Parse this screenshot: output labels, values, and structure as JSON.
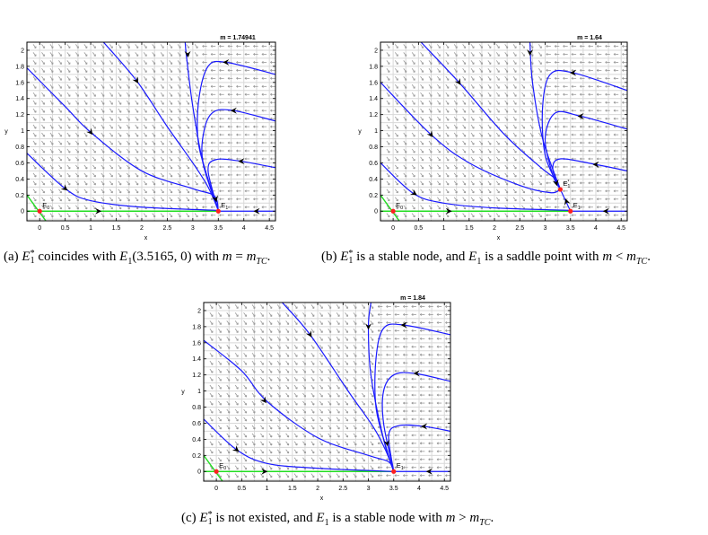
{
  "figure": {
    "colors": {
      "trajectory": "#1a1aff",
      "nullcline": "#22dd22",
      "equilibrium": "#ff2020",
      "field": "#999999",
      "grid": "#d8d8d8"
    },
    "panels": [
      {
        "id": "a",
        "title": "m = 1.74941",
        "xlabel": "x",
        "ylabel": "y",
        "xlim": [
          -0.25,
          4.62
        ],
        "ylim": [
          -0.12,
          2.1
        ],
        "xticks": [
          "0",
          "0.5",
          "1",
          "1.5",
          "2",
          "2.5",
          "3",
          "3.5",
          "4",
          "4.5"
        ],
        "yticks": [
          "0",
          "0.2",
          "0.4",
          "0.6",
          "0.8",
          "1",
          "1.2",
          "1.4",
          "1.6",
          "1.8",
          "2"
        ],
        "trajectories": [
          [
            [
              -0.25,
              0.72
            ],
            [
              0.5,
              0.28
            ],
            [
              1,
              0.13
            ],
            [
              2,
              0.05
            ],
            [
              3.5,
              0.01
            ]
          ],
          [
            [
              -0.25,
              1.78
            ],
            [
              0.5,
              1.3
            ],
            [
              1,
              0.98
            ],
            [
              2,
              0.5
            ],
            [
              3,
              0.28
            ],
            [
              3.42,
              0.19
            ],
            [
              3.5,
              0.01
            ]
          ],
          [
            [
              1.25,
              2.1
            ],
            [
              1.9,
              1.62
            ],
            [
              2.5,
              1.05
            ],
            [
              3,
              0.6
            ],
            [
              3.3,
              0.3
            ],
            [
              3.5,
              0.01
            ]
          ],
          [
            [
              2.85,
              2.1
            ],
            [
              2.88,
              1.9
            ],
            [
              3.0,
              1.3
            ],
            [
              3.2,
              0.6
            ],
            [
              3.5,
              0.01
            ]
          ],
          [
            [
              4.62,
              1.7
            ],
            [
              3.65,
              1.85
            ],
            [
              3.3,
              1.8
            ],
            [
              3.12,
              1.4
            ],
            [
              3.1,
              0.9
            ],
            [
              3.25,
              0.5
            ],
            [
              3.5,
              0.01
            ]
          ],
          [
            [
              4.62,
              1.12
            ],
            [
              3.8,
              1.25
            ],
            [
              3.4,
              1.23
            ],
            [
              3.22,
              1.0
            ],
            [
              3.2,
              0.6
            ],
            [
              3.5,
              0.01
            ]
          ],
          [
            [
              4.62,
              0.54
            ],
            [
              3.95,
              0.62
            ],
            [
              3.45,
              0.64
            ],
            [
              3.3,
              0.5
            ],
            [
              3.5,
              0.01
            ]
          ],
          [
            [
              4.62,
              0
            ],
            [
              3.5,
              0
            ]
          ]
        ],
        "nullclines": [
          [
            [
              -0.25,
              0
            ],
            [
              3.5,
              0
            ]
          ],
          [
            [
              -0.25,
              0.2
            ],
            [
              0.12,
              -0.12
            ]
          ]
        ],
        "arrows": [
          [
            1.9,
            1.62,
            1,
            -1.1
          ],
          [
            1.0,
            0.98,
            1,
            -0.8
          ],
          [
            0.5,
            0.28,
            1,
            -0.5
          ],
          [
            1.15,
            0,
            1,
            0
          ],
          [
            2.9,
            1.95,
            0.05,
            -1
          ],
          [
            3.65,
            1.85,
            -1,
            0
          ],
          [
            3.8,
            1.25,
            -1,
            0
          ],
          [
            3.95,
            0.62,
            -1,
            0
          ],
          [
            3.45,
            0.15,
            0.4,
            -1
          ],
          [
            4.25,
            0,
            -1,
            0
          ]
        ],
        "equilibria": [
          {
            "x": 0,
            "y": 0,
            "name": "E",
            "sub": "0",
            "sup": ""
          },
          {
            "x": 3.5,
            "y": 0,
            "name": "E",
            "sub": "1",
            "sup": ""
          }
        ]
      },
      {
        "id": "b",
        "title": "m = 1.64",
        "xlabel": "x",
        "ylabel": "y",
        "xlim": [
          -0.25,
          4.62
        ],
        "ylim": [
          -0.12,
          2.1
        ],
        "xticks": [
          "0",
          "0.5",
          "1",
          "1.5",
          "2",
          "2.5",
          "3",
          "3.5",
          "4",
          "4.5"
        ],
        "yticks": [
          "0",
          "0.2",
          "0.4",
          "0.6",
          "0.8",
          "1",
          "1.2",
          "1.4",
          "1.6",
          "1.8",
          "2"
        ],
        "trajectories": [
          [
            [
              -0.25,
              0.6
            ],
            [
              0.4,
              0.22
            ],
            [
              1,
              0.1
            ],
            [
              2,
              0.04
            ],
            [
              3.5,
              0.01
            ]
          ],
          [
            [
              -0.25,
              1.6
            ],
            [
              0.75,
              0.95
            ],
            [
              1.5,
              0.6
            ],
            [
              2.5,
              0.32
            ],
            [
              3.1,
              0.23
            ],
            [
              3.3,
              0.27
            ]
          ],
          [
            [
              0.55,
              2.1
            ],
            [
              1.3,
              1.6
            ],
            [
              2.2,
              0.95
            ],
            [
              2.9,
              0.55
            ],
            [
              3.2,
              0.4
            ],
            [
              3.3,
              0.27
            ]
          ],
          [
            [
              2.7,
              2.1
            ],
            [
              2.75,
              1.6
            ],
            [
              2.95,
              0.9
            ],
            [
              3.3,
              0.27
            ]
          ],
          [
            [
              4.62,
              1.5
            ],
            [
              3.55,
              1.72
            ],
            [
              3.1,
              1.7
            ],
            [
              2.95,
              1.3
            ],
            [
              3.0,
              0.7
            ],
            [
              3.3,
              0.27
            ]
          ],
          [
            [
              4.62,
              1.02
            ],
            [
              3.7,
              1.18
            ],
            [
              3.2,
              1.22
            ],
            [
              3.0,
              0.9
            ],
            [
              3.15,
              0.45
            ],
            [
              3.3,
              0.27
            ]
          ],
          [
            [
              4.62,
              0.5
            ],
            [
              4.0,
              0.58
            ],
            [
              3.3,
              0.65
            ],
            [
              3.15,
              0.52
            ],
            [
              3.3,
              0.27
            ]
          ],
          [
            [
              3.5,
              0
            ],
            [
              3.3,
              0.27
            ]
          ],
          [
            [
              4.62,
              0
            ],
            [
              3.5,
              0
            ]
          ]
        ],
        "nullclines": [
          [
            [
              -0.25,
              0
            ],
            [
              3.5,
              0
            ]
          ],
          [
            [
              -0.25,
              0.2
            ],
            [
              0.12,
              -0.12
            ]
          ]
        ],
        "arrows": [
          [
            1.3,
            1.6,
            1,
            -1
          ],
          [
            0.75,
            0.95,
            1,
            -0.8
          ],
          [
            0.42,
            0.22,
            1,
            -0.4
          ],
          [
            1.1,
            0,
            1,
            0
          ],
          [
            2.7,
            1.97,
            0,
            -1
          ],
          [
            3.55,
            1.72,
            -1,
            0
          ],
          [
            3.7,
            1.18,
            -1,
            0
          ],
          [
            4.0,
            0.58,
            -1,
            0
          ],
          [
            3.22,
            0.35,
            0.4,
            -1
          ],
          [
            3.42,
            0.12,
            -0.5,
            1
          ],
          [
            4.2,
            0,
            -1,
            0
          ]
        ],
        "equilibria": [
          {
            "x": 0,
            "y": 0,
            "name": "E",
            "sub": "0",
            "sup": ""
          },
          {
            "x": 3.5,
            "y": 0,
            "name": "E",
            "sub": "1",
            "sup": ""
          },
          {
            "x": 3.3,
            "y": 0.27,
            "name": "E",
            "sub": "1",
            "sup": "*"
          }
        ]
      },
      {
        "id": "c",
        "title": "m = 1.84",
        "xlabel": "x",
        "ylabel": "y",
        "xlim": [
          -0.25,
          4.62
        ],
        "ylim": [
          -0.12,
          2.1
        ],
        "xticks": [
          "0",
          "0.5",
          "1",
          "1.5",
          "2",
          "2.5",
          "3",
          "3.5",
          "4",
          "4.5"
        ],
        "yticks": [
          "0",
          "0.2",
          "0.4",
          "0.6",
          "0.8",
          "1",
          "1.2",
          "1.4",
          "1.6",
          "1.8",
          "2"
        ],
        "trajectories": [
          [
            [
              -0.25,
              0.65
            ],
            [
              0.4,
              0.27
            ],
            [
              1,
              0.1
            ],
            [
              2,
              0.04
            ],
            [
              3.5,
              0.0
            ]
          ],
          [
            [
              -0.25,
              1.63
            ],
            [
              0.5,
              1.25
            ],
            [
              1,
              0.87
            ],
            [
              2,
              0.42
            ],
            [
              3,
              0.2
            ],
            [
              3.4,
              0.12
            ],
            [
              3.5,
              0
            ]
          ],
          [
            [
              1.3,
              2.1
            ],
            [
              1.85,
              1.7
            ],
            [
              2.6,
              1.0
            ],
            [
              3.1,
              0.55
            ],
            [
              3.35,
              0.25
            ],
            [
              3.5,
              0
            ]
          ],
          [
            [
              3.05,
              2.1
            ],
            [
              3.0,
              1.8
            ],
            [
              3.05,
              1.2
            ],
            [
              3.3,
              0.4
            ],
            [
              3.5,
              0
            ]
          ],
          [
            [
              4.62,
              1.7
            ],
            [
              3.7,
              1.82
            ],
            [
              3.3,
              1.78
            ],
            [
              3.15,
              1.4
            ],
            [
              3.15,
              0.8
            ],
            [
              3.35,
              0.3
            ],
            [
              3.5,
              0
            ]
          ],
          [
            [
              4.62,
              1.12
            ],
            [
              3.9,
              1.22
            ],
            [
              3.5,
              1.2
            ],
            [
              3.3,
              1.0
            ],
            [
              3.3,
              0.6
            ],
            [
              3.5,
              0
            ]
          ],
          [
            [
              4.62,
              0.5
            ],
            [
              4.1,
              0.56
            ],
            [
              3.6,
              0.57
            ],
            [
              3.4,
              0.45
            ],
            [
              3.5,
              0
            ]
          ],
          [
            [
              4.62,
              0
            ],
            [
              3.5,
              0
            ]
          ]
        ],
        "nullclines": [
          [
            [
              -0.25,
              0
            ],
            [
              3.5,
              0
            ]
          ],
          [
            [
              -0.25,
              0.2
            ],
            [
              0.12,
              -0.12
            ]
          ]
        ],
        "arrows": [
          [
            1.85,
            1.7,
            1,
            -1.1
          ],
          [
            0.95,
            0.88,
            1,
            -0.8
          ],
          [
            0.4,
            0.27,
            1,
            -0.5
          ],
          [
            0.95,
            0,
            1,
            0
          ],
          [
            3.0,
            1.8,
            0,
            -1
          ],
          [
            3.7,
            1.82,
            -1,
            0
          ],
          [
            3.95,
            1.22,
            -1,
            0
          ],
          [
            4.1,
            0.56,
            -1,
            0
          ],
          [
            3.37,
            0.35,
            0.3,
            -1
          ],
          [
            4.2,
            0,
            -1,
            0
          ]
        ],
        "equilibria": [
          {
            "x": 0,
            "y": 0,
            "name": "E",
            "sub": "0",
            "sup": ""
          },
          {
            "x": 3.5,
            "y": 0,
            "name": "E",
            "sub": "1",
            "sup": ""
          }
        ]
      }
    ]
  },
  "captions": {
    "a": [
      {
        "t": "txt",
        "v": "(a) "
      },
      {
        "t": "E",
        "v": "E",
        "sup": "*",
        "sub": "1"
      },
      {
        "t": "txt",
        "v": " coincides with "
      },
      {
        "t": "it",
        "v": "E"
      },
      {
        "t": "sub",
        "v": "1"
      },
      {
        "t": "txt",
        "v": "(3.5165, 0) with "
      },
      {
        "t": "it",
        "v": "m"
      },
      {
        "t": "txt",
        "v": " = "
      },
      {
        "t": "it",
        "v": "m"
      },
      {
        "t": "subi",
        "v": "TC"
      },
      {
        "t": "txt",
        "v": "."
      }
    ],
    "b": [
      {
        "t": "txt",
        "v": "(b) "
      },
      {
        "t": "E",
        "v": "E",
        "sup": "*",
        "sub": "1"
      },
      {
        "t": "txt",
        "v": " is a stable node, and "
      },
      {
        "t": "it",
        "v": "E"
      },
      {
        "t": "sub",
        "v": "1"
      },
      {
        "t": "txt",
        "v": " is a saddle point with "
      },
      {
        "t": "it",
        "v": "m"
      },
      {
        "t": "txt",
        "v": " < "
      },
      {
        "t": "it",
        "v": "m"
      },
      {
        "t": "subi",
        "v": "TC"
      },
      {
        "t": "txt",
        "v": "."
      }
    ],
    "c": [
      {
        "t": "txt",
        "v": "(c) "
      },
      {
        "t": "E",
        "v": "E",
        "sup": "*",
        "sub": "1"
      },
      {
        "t": "txt",
        "v": " is not existed, and "
      },
      {
        "t": "it",
        "v": "E"
      },
      {
        "t": "sub",
        "v": "1"
      },
      {
        "t": "txt",
        "v": " is a stable node with "
      },
      {
        "t": "it",
        "v": "m"
      },
      {
        "t": "txt",
        "v": " > "
      },
      {
        "t": "it",
        "v": "m"
      },
      {
        "t": "subi",
        "v": "TC"
      },
      {
        "t": "txt",
        "v": "."
      }
    ]
  }
}
